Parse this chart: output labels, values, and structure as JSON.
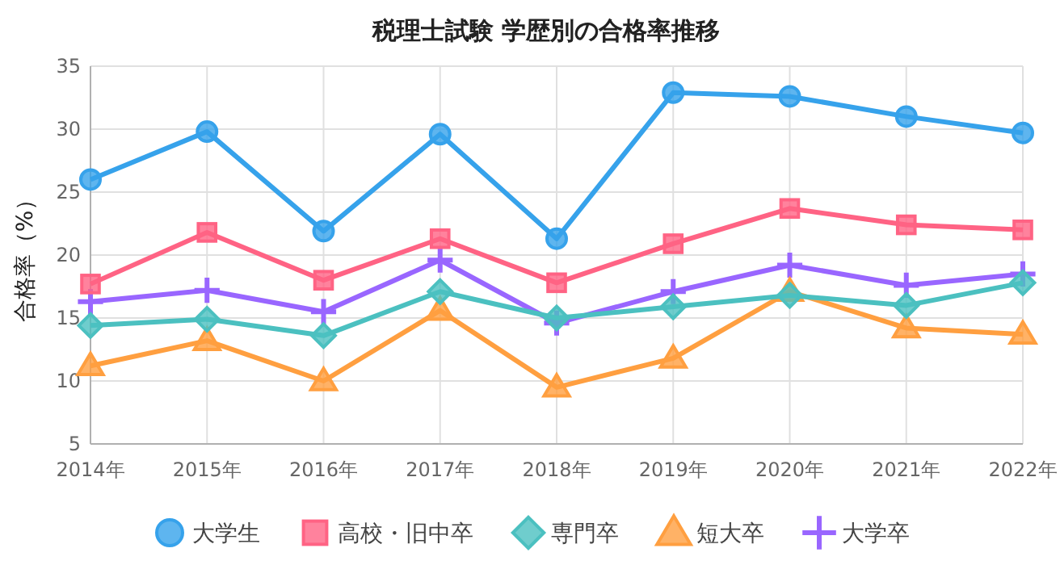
{
  "chart_data": {
    "type": "line",
    "title": "税理士試験 学歴別の合格率推移",
    "ylabel": "合格率（%）",
    "categories": [
      "2014年",
      "2015年",
      "2016年",
      "2017年",
      "2018年",
      "2019年",
      "2020年",
      "2021年",
      "2022年"
    ],
    "ylim": [
      5,
      35
    ],
    "yticks": [
      5,
      10,
      15,
      20,
      25,
      30,
      35
    ],
    "grid": true,
    "legend": "bottom",
    "series": [
      {
        "name": "大学生",
        "color": "#36a2eb",
        "marker": "circle",
        "values": [
          26.0,
          29.8,
          21.9,
          29.6,
          21.3,
          32.9,
          32.6,
          31.0,
          29.7
        ]
      },
      {
        "name": "高校・旧中卒",
        "color": "#ff6384",
        "marker": "square",
        "values": [
          17.7,
          21.8,
          18.0,
          21.3,
          17.8,
          20.9,
          23.7,
          22.4,
          22.0
        ]
      },
      {
        "name": "専門卒",
        "color": "#4bc0c0",
        "marker": "diamond",
        "values": [
          14.4,
          14.9,
          13.6,
          17.1,
          15.0,
          15.9,
          16.8,
          16.0,
          17.8
        ]
      },
      {
        "name": "短大卒",
        "color": "#ff9f40",
        "marker": "triangle",
        "values": [
          11.2,
          13.2,
          10.0,
          15.6,
          9.5,
          11.8,
          17.1,
          14.2,
          13.7
        ]
      },
      {
        "name": "大学卒",
        "color": "#9966ff",
        "marker": "cross",
        "values": [
          16.3,
          17.2,
          15.5,
          19.6,
          14.6,
          17.1,
          19.2,
          17.6,
          18.5
        ]
      }
    ]
  }
}
